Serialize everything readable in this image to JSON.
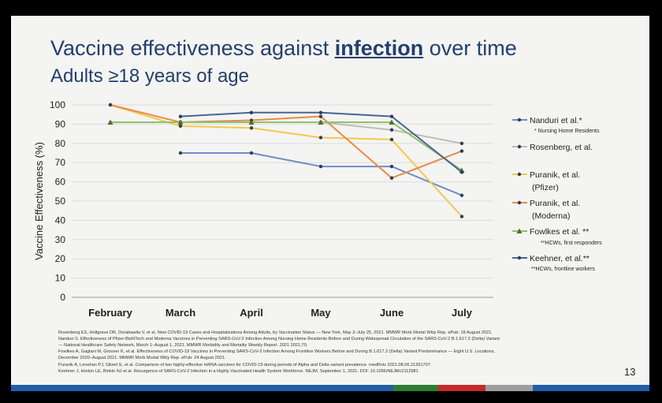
{
  "slide": {
    "title_prefix": "Vaccine effectiveness against ",
    "title_emphasis": "infection",
    "title_suffix": " over time",
    "subtitle": "Adults ≥18 years of age",
    "page_number": "13",
    "references": [
      "Rosenberg ES, Holtgrave DR, Dorabawila V, et al. New COVID-19 Cases and Hospitalizations Among Adults, by Vaccination Status — New York, May 3–July 25, 2021. MMWR Morb Mortal Wkly Rep. ePub: 18 August 2021.",
      "Nanduri S. Effectiveness of Pfizer-BioNTech and Moderna Vaccines in Preventing SARS-CoV-2 Infection Among Nursing Home Residents Before and During Widespread Circulation of the SARS-CoV-2 B.1.617.2 (Delta) Variant",
      "— National Healthcare Safety Network, March 1–August 1, 2021. MMWR Morbidity and Mortality Weekly Report. 2021 2021;70.",
      "Fowlkes A, Gaglani M, Groover K, et al. Effectiveness of COVID-19 Vaccines in Preventing SARS-CoV-2 Infection Among Frontline Workers Before and During B.1.617.2 (Delta) Variant Predominance — Eight U.S. Locations,",
      "December 2020–August 2021. MMWR Morb Mortal Wkly Rep. ePub: 24 August 2021.",
      "Puranik A, Lenehan PJ, Silvert E, et al. Comparison of two highly-effective mRNA vaccines for COVID-19 during periods of Alpha and Delta variant prevalence. medRxiv 2021.08.06.21261707.",
      "Keehner J, Horton LE, Binkin NJ et al. Resurgence of SARS-CoV-2 Infection in a Highly Vaccinated Health System Workforce. NEJM, September 1, 2021. DOI: 10.1056/NEJMc2112981"
    ],
    "footer_colors": [
      "#1f5fa8",
      "#1f5fa8",
      "#1f5fa8",
      "#1f5fa8",
      "#2e7d32",
      "#c62828",
      "#9e9e9e",
      "#1f5fa8"
    ]
  },
  "chart_data": {
    "type": "line",
    "title": "",
    "xlabel": "",
    "ylabel": "Vaccine Effectiveness (%)",
    "ylim": [
      0,
      100
    ],
    "yticks": [
      0,
      10,
      20,
      30,
      40,
      50,
      60,
      70,
      80,
      90,
      100
    ],
    "grid": true,
    "legend_position": "right",
    "categories": [
      "February",
      "March",
      "April",
      "May",
      "June",
      "July"
    ],
    "series": [
      {
        "name": "Nanduri et al.*",
        "note": "* Nursing Home Residents",
        "color": "#6d8ec6",
        "marker": "dot",
        "values": [
          null,
          75,
          75,
          68,
          68,
          53
        ]
      },
      {
        "name": "Rosenberg, et al.",
        "note": "",
        "color": "#bcbcbc",
        "marker": "dot",
        "values": [
          null,
          91,
          91,
          91,
          87,
          80
        ]
      },
      {
        "name": "Puranik, et al. (Pfizer)",
        "note": "",
        "color": "#f2c94c",
        "marker": "dot",
        "values": [
          100,
          89,
          88,
          83,
          82,
          42
        ]
      },
      {
        "name": "Puranik, et al. (Moderna)",
        "note": "",
        "color": "#ea8a4b",
        "marker": "dot",
        "values": [
          100,
          91,
          92,
          94,
          62,
          76
        ]
      },
      {
        "name": "Fowlkes et al. **",
        "note": "**HCWs, first responders",
        "color": "#8cc46a",
        "marker": "triangle",
        "values": [
          91,
          91,
          91,
          91,
          91,
          66
        ]
      },
      {
        "name": "Keehner, et al.**",
        "note": "**HCWs, frontline workers",
        "color": "#4a6590",
        "marker": "dot",
        "values": [
          null,
          94,
          96,
          96,
          94,
          65
        ]
      }
    ]
  }
}
